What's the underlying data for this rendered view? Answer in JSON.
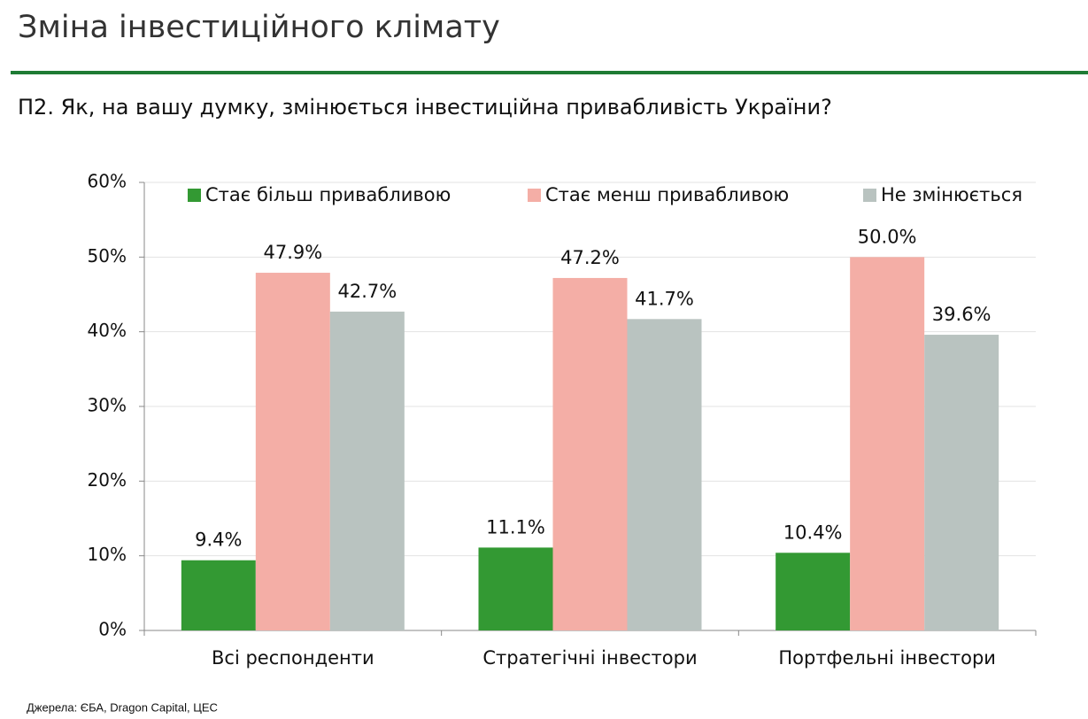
{
  "chart_data": {
    "type": "bar",
    "title": "Зміна інвестиційного клімату",
    "subtitle": "П2. Як, на вашу думку, змінюється інвестиційна привабливість України?",
    "source": "Джерела: ЄБА, Dragon Capital, ЦЕС",
    "categories": [
      "Всі респонденти",
      "Стратегічні інвестори",
      "Портфельні інвестори"
    ],
    "series": [
      {
        "name": "Стає більш привабливою",
        "color": "#339933",
        "values": [
          9.4,
          11.1,
          10.4
        ],
        "value_labels": [
          "9.4%",
          "11.1%",
          "10.4%"
        ]
      },
      {
        "name": "Стає менш привабливою",
        "color": "#f4aea6",
        "values": [
          47.9,
          47.2,
          50.0
        ],
        "value_labels": [
          "47.9%",
          "47.2%",
          "50.0%"
        ]
      },
      {
        "name": "Не змінюється",
        "color": "#b9c3c0",
        "values": [
          42.7,
          41.7,
          39.6
        ],
        "value_labels": [
          "42.7%",
          "41.7%",
          "39.6%"
        ]
      }
    ],
    "ylim": [
      0,
      60
    ],
    "yticks": [
      {
        "value": 0,
        "label": "0%"
      },
      {
        "value": 10,
        "label": "10%"
      },
      {
        "value": 20,
        "label": "20%"
      },
      {
        "value": 30,
        "label": "30%"
      },
      {
        "value": 40,
        "label": "40%"
      },
      {
        "value": 50,
        "label": "50%"
      },
      {
        "value": 60,
        "label": "60%"
      }
    ],
    "grid": true,
    "legend": "top"
  }
}
